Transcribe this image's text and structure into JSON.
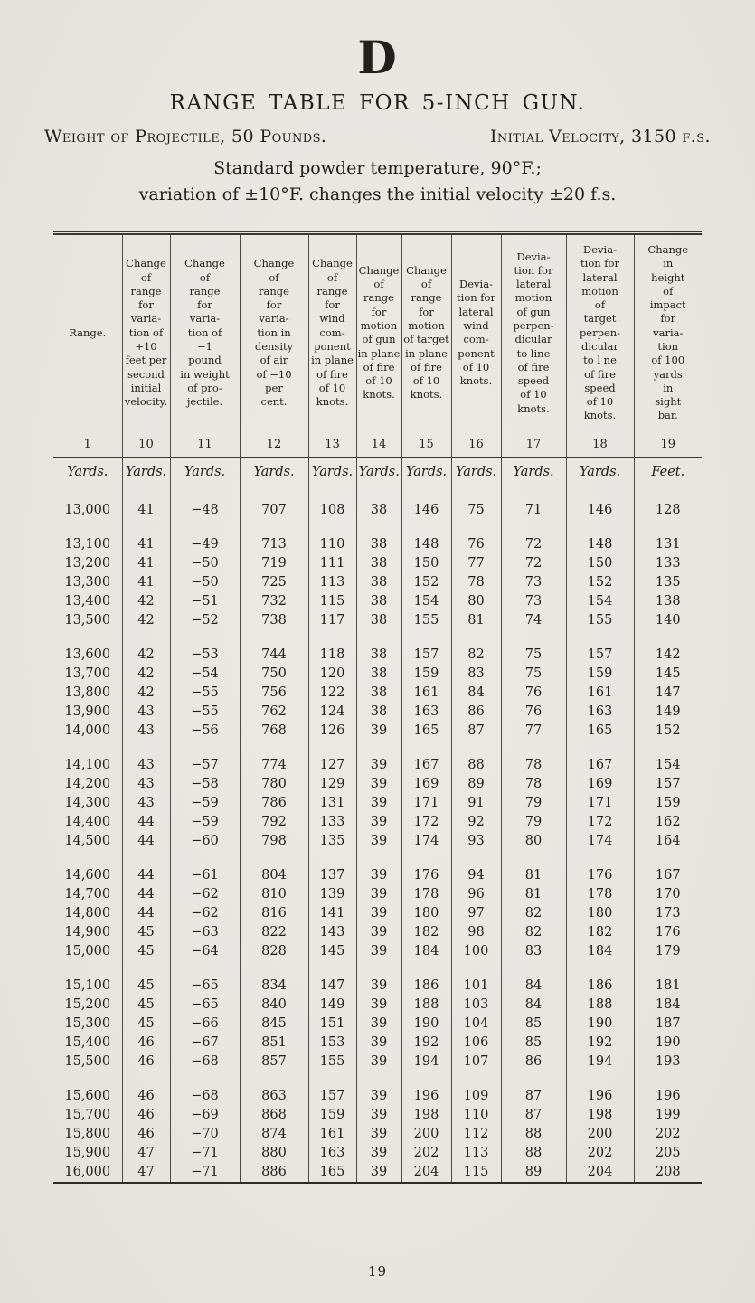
{
  "page": {
    "letter": "D",
    "title": "RANGE TABLE FOR 5-INCH GUN.",
    "subtitle_left": "Weight of Projectile, 50 Pounds.",
    "subtitle_right": "Initial Velocity, 3150 f.s.",
    "note_line1": "Standard powder temperature, 90°F.;",
    "note_line2": "variation of ±10°F. changes the initial velocity ±20 f.s.",
    "page_number": "19"
  },
  "colors": {
    "paper": "#e8e6e1",
    "ink": "#21201c",
    "rule": "#3a3833"
  },
  "table": {
    "columns": [
      {
        "number": "1",
        "header": "Range.",
        "unit": "Yards."
      },
      {
        "number": "10",
        "header": "Change\nof\nrange\nfor\nvaria-\ntion of\n+10\nfeet per\nsecond\ninitial\nvelocity.",
        "unit": "Yards."
      },
      {
        "number": "11",
        "header": "Change\nof\nrange\nfor\nvaria-\ntion of\n−1\npound\nin weight\nof pro-\njectile.",
        "unit": "Yards."
      },
      {
        "number": "12",
        "header": "Change\nof\nrange\nfor\nvaria-\ntion in\ndensity\nof air\nof −10\nper\ncent.",
        "unit": "Yards."
      },
      {
        "number": "13",
        "header": "Change\nof\nrange\nfor\nwind\ncom-\nponent\nin plane\nof fire\nof 10\nknots.",
        "unit": "Yards."
      },
      {
        "number": "14",
        "header": "Change\nof\nrange\nfor\nmotion\nof gun\nin plane\nof fire\nof 10\nknots.",
        "unit": "Yards."
      },
      {
        "number": "15",
        "header": "Change\nof\nrange\nfor\nmotion\nof target\nin plane\nof fire\nof 10\nknots.",
        "unit": "Yards."
      },
      {
        "number": "16",
        "header": "Devia-\ntion for\nlateral\nwind\ncom-\nponent\nof 10\nknots.",
        "unit": "Yards."
      },
      {
        "number": "17",
        "header": "Devia-\ntion for\nlateral\nmotion\nof gun\nperpen-\ndicular\nto line\nof fire\nspeed\nof 10\nknots.",
        "unit": "Yards."
      },
      {
        "number": "18",
        "header": "Devia-\ntion for\nlateral\nmotion\nof\ntarget\nperpen-\ndicular\nto l ne\nof fire\nspeed\nof 10\nknots.",
        "unit": "Yards."
      },
      {
        "number": "19",
        "header": "Change\nin\nheight\nof\nimpact\nfor\nvaria-\ntion\nof 100\nyards\nin\nsight\nbar.",
        "unit": "Feet."
      }
    ],
    "row_groups": [
      [
        [
          "13,000",
          "41",
          "−48",
          "707",
          "108",
          "38",
          "146",
          "75",
          "71",
          "146",
          "128"
        ]
      ],
      [
        [
          "13,100",
          "41",
          "−49",
          "713",
          "110",
          "38",
          "148",
          "76",
          "72",
          "148",
          "131"
        ],
        [
          "13,200",
          "41",
          "−50",
          "719",
          "111",
          "38",
          "150",
          "77",
          "72",
          "150",
          "133"
        ],
        [
          "13,300",
          "41",
          "−50",
          "725",
          "113",
          "38",
          "152",
          "78",
          "73",
          "152",
          "135"
        ],
        [
          "13,400",
          "42",
          "−51",
          "732",
          "115",
          "38",
          "154",
          "80",
          "73",
          "154",
          "138"
        ],
        [
          "13,500",
          "42",
          "−52",
          "738",
          "117",
          "38",
          "155",
          "81",
          "74",
          "155",
          "140"
        ]
      ],
      [
        [
          "13,600",
          "42",
          "−53",
          "744",
          "118",
          "38",
          "157",
          "82",
          "75",
          "157",
          "142"
        ],
        [
          "13,700",
          "42",
          "−54",
          "750",
          "120",
          "38",
          "159",
          "83",
          "75",
          "159",
          "145"
        ],
        [
          "13,800",
          "42",
          "−55",
          "756",
          "122",
          "38",
          "161",
          "84",
          "76",
          "161",
          "147"
        ],
        [
          "13,900",
          "43",
          "−55",
          "762",
          "124",
          "38",
          "163",
          "86",
          "76",
          "163",
          "149"
        ],
        [
          "14,000",
          "43",
          "−56",
          "768",
          "126",
          "39",
          "165",
          "87",
          "77",
          "165",
          "152"
        ]
      ],
      [
        [
          "14,100",
          "43",
          "−57",
          "774",
          "127",
          "39",
          "167",
          "88",
          "78",
          "167",
          "154"
        ],
        [
          "14,200",
          "43",
          "−58",
          "780",
          "129",
          "39",
          "169",
          "89",
          "78",
          "169",
          "157"
        ],
        [
          "14,300",
          "43",
          "−59",
          "786",
          "131",
          "39",
          "171",
          "91",
          "79",
          "171",
          "159"
        ],
        [
          "14,400",
          "44",
          "−59",
          "792",
          "133",
          "39",
          "172",
          "92",
          "79",
          "172",
          "162"
        ],
        [
          "14,500",
          "44",
          "−60",
          "798",
          "135",
          "39",
          "174",
          "93",
          "80",
          "174",
          "164"
        ]
      ],
      [
        [
          "14,600",
          "44",
          "−61",
          "804",
          "137",
          "39",
          "176",
          "94",
          "81",
          "176",
          "167"
        ],
        [
          "14,700",
          "44",
          "−62",
          "810",
          "139",
          "39",
          "178",
          "96",
          "81",
          "178",
          "170"
        ],
        [
          "14,800",
          "44",
          "−62",
          "816",
          "141",
          "39",
          "180",
          "97",
          "82",
          "180",
          "173"
        ],
        [
          "14,900",
          "45",
          "−63",
          "822",
          "143",
          "39",
          "182",
          "98",
          "82",
          "182",
          "176"
        ],
        [
          "15,000",
          "45",
          "−64",
          "828",
          "145",
          "39",
          "184",
          "100",
          "83",
          "184",
          "179"
        ]
      ],
      [
        [
          "15,100",
          "45",
          "−65",
          "834",
          "147",
          "39",
          "186",
          "101",
          "84",
          "186",
          "181"
        ],
        [
          "15,200",
          "45",
          "−65",
          "840",
          "149",
          "39",
          "188",
          "103",
          "84",
          "188",
          "184"
        ],
        [
          "15,300",
          "45",
          "−66",
          "845",
          "151",
          "39",
          "190",
          "104",
          "85",
          "190",
          "187"
        ],
        [
          "15,400",
          "46",
          "−67",
          "851",
          "153",
          "39",
          "192",
          "106",
          "85",
          "192",
          "190"
        ],
        [
          "15,500",
          "46",
          "−68",
          "857",
          "155",
          "39",
          "194",
          "107",
          "86",
          "194",
          "193"
        ]
      ],
      [
        [
          "15,600",
          "46",
          "−68",
          "863",
          "157",
          "39",
          "196",
          "109",
          "87",
          "196",
          "196"
        ],
        [
          "15,700",
          "46",
          "−69",
          "868",
          "159",
          "39",
          "198",
          "110",
          "87",
          "198",
          "199"
        ],
        [
          "15,800",
          "46",
          "−70",
          "874",
          "161",
          "39",
          "200",
          "112",
          "88",
          "200",
          "202"
        ],
        [
          "15,900",
          "47",
          "−71",
          "880",
          "163",
          "39",
          "202",
          "113",
          "88",
          "202",
          "205"
        ],
        [
          "16,000",
          "47",
          "−71",
          "886",
          "165",
          "39",
          "204",
          "115",
          "89",
          "204",
          "208"
        ]
      ]
    ]
  }
}
